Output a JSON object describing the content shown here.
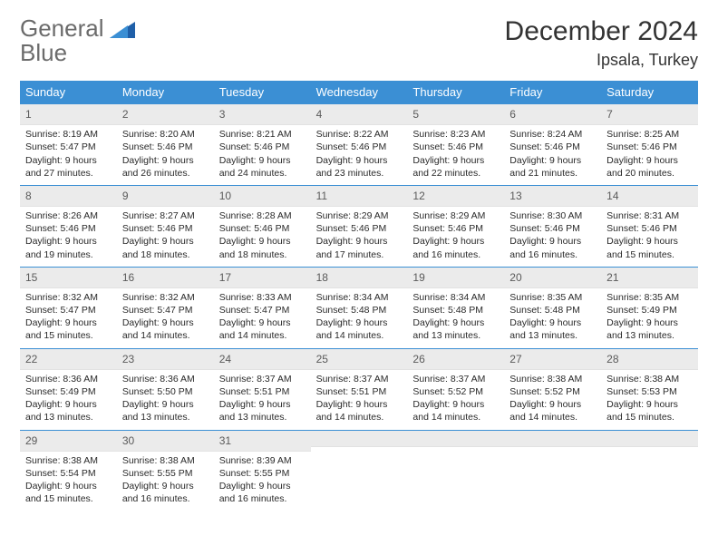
{
  "logo": {
    "text1": "General",
    "text2": "Blue"
  },
  "title": "December 2024",
  "location": "Ipsala, Turkey",
  "colors": {
    "headerBar": "#3b8fd4",
    "dayNumBg": "#ebebeb",
    "rule": "#3b8fd4",
    "text": "#2a2a2a",
    "logoGray": "#6b6b6b",
    "logoBlue": "#3b7fc4"
  },
  "typography": {
    "title_fontsize": 30,
    "location_fontsize": 18,
    "dow_fontsize": 13,
    "daynum_fontsize": 12,
    "body_fontsize": 10.5
  },
  "daysOfWeek": [
    "Sunday",
    "Monday",
    "Tuesday",
    "Wednesday",
    "Thursday",
    "Friday",
    "Saturday"
  ],
  "weeks": [
    [
      {
        "n": "1",
        "sunrise": "8:19 AM",
        "sunset": "5:47 PM",
        "daylight": "9 hours and 27 minutes."
      },
      {
        "n": "2",
        "sunrise": "8:20 AM",
        "sunset": "5:46 PM",
        "daylight": "9 hours and 26 minutes."
      },
      {
        "n": "3",
        "sunrise": "8:21 AM",
        "sunset": "5:46 PM",
        "daylight": "9 hours and 24 minutes."
      },
      {
        "n": "4",
        "sunrise": "8:22 AM",
        "sunset": "5:46 PM",
        "daylight": "9 hours and 23 minutes."
      },
      {
        "n": "5",
        "sunrise": "8:23 AM",
        "sunset": "5:46 PM",
        "daylight": "9 hours and 22 minutes."
      },
      {
        "n": "6",
        "sunrise": "8:24 AM",
        "sunset": "5:46 PM",
        "daylight": "9 hours and 21 minutes."
      },
      {
        "n": "7",
        "sunrise": "8:25 AM",
        "sunset": "5:46 PM",
        "daylight": "9 hours and 20 minutes."
      }
    ],
    [
      {
        "n": "8",
        "sunrise": "8:26 AM",
        "sunset": "5:46 PM",
        "daylight": "9 hours and 19 minutes."
      },
      {
        "n": "9",
        "sunrise": "8:27 AM",
        "sunset": "5:46 PM",
        "daylight": "9 hours and 18 minutes."
      },
      {
        "n": "10",
        "sunrise": "8:28 AM",
        "sunset": "5:46 PM",
        "daylight": "9 hours and 18 minutes."
      },
      {
        "n": "11",
        "sunrise": "8:29 AM",
        "sunset": "5:46 PM",
        "daylight": "9 hours and 17 minutes."
      },
      {
        "n": "12",
        "sunrise": "8:29 AM",
        "sunset": "5:46 PM",
        "daylight": "9 hours and 16 minutes."
      },
      {
        "n": "13",
        "sunrise": "8:30 AM",
        "sunset": "5:46 PM",
        "daylight": "9 hours and 16 minutes."
      },
      {
        "n": "14",
        "sunrise": "8:31 AM",
        "sunset": "5:46 PM",
        "daylight": "9 hours and 15 minutes."
      }
    ],
    [
      {
        "n": "15",
        "sunrise": "8:32 AM",
        "sunset": "5:47 PM",
        "daylight": "9 hours and 15 minutes."
      },
      {
        "n": "16",
        "sunrise": "8:32 AM",
        "sunset": "5:47 PM",
        "daylight": "9 hours and 14 minutes."
      },
      {
        "n": "17",
        "sunrise": "8:33 AM",
        "sunset": "5:47 PM",
        "daylight": "9 hours and 14 minutes."
      },
      {
        "n": "18",
        "sunrise": "8:34 AM",
        "sunset": "5:48 PM",
        "daylight": "9 hours and 14 minutes."
      },
      {
        "n": "19",
        "sunrise": "8:34 AM",
        "sunset": "5:48 PM",
        "daylight": "9 hours and 13 minutes."
      },
      {
        "n": "20",
        "sunrise": "8:35 AM",
        "sunset": "5:48 PM",
        "daylight": "9 hours and 13 minutes."
      },
      {
        "n": "21",
        "sunrise": "8:35 AM",
        "sunset": "5:49 PM",
        "daylight": "9 hours and 13 minutes."
      }
    ],
    [
      {
        "n": "22",
        "sunrise": "8:36 AM",
        "sunset": "5:49 PM",
        "daylight": "9 hours and 13 minutes."
      },
      {
        "n": "23",
        "sunrise": "8:36 AM",
        "sunset": "5:50 PM",
        "daylight": "9 hours and 13 minutes."
      },
      {
        "n": "24",
        "sunrise": "8:37 AM",
        "sunset": "5:51 PM",
        "daylight": "9 hours and 13 minutes."
      },
      {
        "n": "25",
        "sunrise": "8:37 AM",
        "sunset": "5:51 PM",
        "daylight": "9 hours and 14 minutes."
      },
      {
        "n": "26",
        "sunrise": "8:37 AM",
        "sunset": "5:52 PM",
        "daylight": "9 hours and 14 minutes."
      },
      {
        "n": "27",
        "sunrise": "8:38 AM",
        "sunset": "5:52 PM",
        "daylight": "9 hours and 14 minutes."
      },
      {
        "n": "28",
        "sunrise": "8:38 AM",
        "sunset": "5:53 PM",
        "daylight": "9 hours and 15 minutes."
      }
    ],
    [
      {
        "n": "29",
        "sunrise": "8:38 AM",
        "sunset": "5:54 PM",
        "daylight": "9 hours and 15 minutes."
      },
      {
        "n": "30",
        "sunrise": "8:38 AM",
        "sunset": "5:55 PM",
        "daylight": "9 hours and 16 minutes."
      },
      {
        "n": "31",
        "sunrise": "8:39 AM",
        "sunset": "5:55 PM",
        "daylight": "9 hours and 16 minutes."
      },
      {
        "empty": true
      },
      {
        "empty": true
      },
      {
        "empty": true
      },
      {
        "empty": true
      }
    ]
  ],
  "labels": {
    "sunrise": "Sunrise: ",
    "sunset": "Sunset: ",
    "daylight": "Daylight: "
  }
}
